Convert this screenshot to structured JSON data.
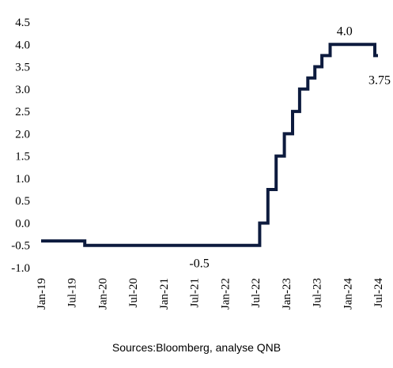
{
  "chart_data": {
    "type": "line",
    "step": true,
    "title": "",
    "xlabel": "",
    "ylabel": "",
    "ylim": [
      -1.0,
      4.5
    ],
    "yticks": [
      "4.5",
      "4.0",
      "3.5",
      "3.0",
      "2.5",
      "2.0",
      "1.5",
      "1.0",
      "0.5",
      "0.0",
      "-0.5",
      "-1.0"
    ],
    "ytick_values": [
      4.5,
      4.0,
      3.5,
      3.0,
      2.5,
      2.0,
      1.5,
      1.0,
      0.5,
      0.0,
      -0.5,
      -1.0
    ],
    "xticks": [
      "Jan-19",
      "Jul-19",
      "Jan-20",
      "Jul-20",
      "Jan-21",
      "Jul-21",
      "Jan-22",
      "Jul-22",
      "Jan-23",
      "Jul-23",
      "Jan-24",
      "Jul-24"
    ],
    "xlim": [
      "2019-01",
      "2024-07"
    ],
    "grid": false,
    "line_color": "#0d1b3e",
    "series": [
      {
        "points": [
          [
            "2019-01-01",
            -0.4
          ],
          [
            "2019-09-18",
            -0.5
          ],
          [
            "2022-07-27",
            0.0
          ],
          [
            "2022-09-14",
            0.75
          ],
          [
            "2022-11-02",
            1.5
          ],
          [
            "2022-12-21",
            2.0
          ],
          [
            "2023-02-08",
            2.5
          ],
          [
            "2023-03-22",
            3.0
          ],
          [
            "2023-05-10",
            3.25
          ],
          [
            "2023-06-21",
            3.5
          ],
          [
            "2023-08-02",
            3.75
          ],
          [
            "2023-09-20",
            4.0
          ],
          [
            "2024-06-12",
            3.75
          ],
          [
            "2024-07-01",
            3.75
          ]
        ]
      }
    ],
    "annotations": [
      {
        "text": "4.0",
        "x": "2023-12-15",
        "y": 4.0
      },
      {
        "text": "3.75",
        "x": "2024-06-12",
        "y": 3.75
      },
      {
        "text": "-0.5",
        "x": "2021-08-01",
        "y": -0.5
      }
    ]
  },
  "source_text": "Sources:Bloomberg, analyse QNB"
}
